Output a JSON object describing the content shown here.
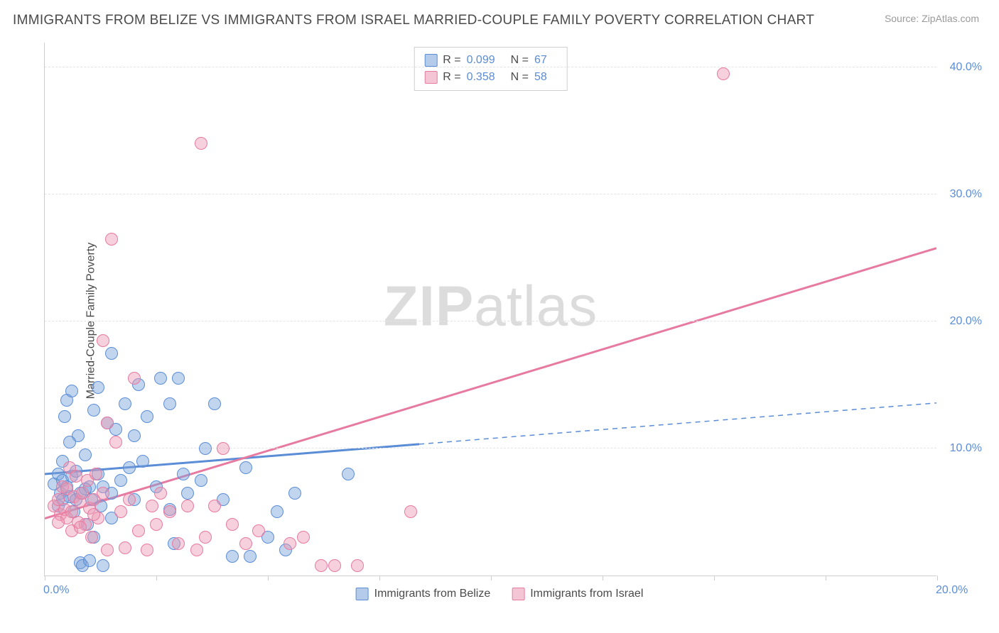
{
  "title": "IMMIGRANTS FROM BELIZE VS IMMIGRANTS FROM ISRAEL MARRIED-COUPLE FAMILY POVERTY CORRELATION CHART",
  "source": "Source: ZipAtlas.com",
  "watermark_a": "ZIP",
  "watermark_b": "atlas",
  "y_axis_title": "Married-Couple Family Poverty",
  "chart": {
    "type": "scatter",
    "background_color": "#ffffff",
    "grid_color": "#e4e4e4",
    "axis_color": "#cfcfcf",
    "label_color": "#5b8dd6",
    "text_color": "#4a4a4a",
    "xlim": [
      0,
      20
    ],
    "ylim": [
      0,
      42
    ],
    "x_ticks": [
      0,
      2.5,
      5,
      7.5,
      10,
      12.5,
      15,
      17.5,
      20
    ],
    "x_tick_labels": {
      "0": "0.0%",
      "20": "20.0%"
    },
    "y_ticks": [
      10,
      20,
      30,
      40
    ],
    "y_tick_labels": {
      "10": "10.0%",
      "20": "20.0%",
      "30": "30.0%",
      "40": "40.0%"
    },
    "marker_size": 18,
    "marker_opacity": 0.45,
    "series": [
      {
        "name": "Immigrants from Belize",
        "color_fill": "#77a2d9",
        "color_stroke": "#5b8dd6",
        "r": "0.099",
        "n": "67",
        "trend": {
          "x1": 0,
          "y1": 8.0,
          "x2": 20,
          "y2": 13.6,
          "solid_to_x": 8.4,
          "width": 3
        },
        "points": [
          [
            0.2,
            7.2
          ],
          [
            0.3,
            8.0
          ],
          [
            0.35,
            6.5
          ],
          [
            0.4,
            7.5
          ],
          [
            0.4,
            9.0
          ],
          [
            0.45,
            12.5
          ],
          [
            0.5,
            7.0
          ],
          [
            0.5,
            13.8
          ],
          [
            0.55,
            6.2
          ],
          [
            0.6,
            7.8
          ],
          [
            0.6,
            14.5
          ],
          [
            0.65,
            5.0
          ],
          [
            0.7,
            8.2
          ],
          [
            0.75,
            11.0
          ],
          [
            0.8,
            6.5
          ],
          [
            0.8,
            1.0
          ],
          [
            0.85,
            0.8
          ],
          [
            0.9,
            9.5
          ],
          [
            0.95,
            4.0
          ],
          [
            1.0,
            1.2
          ],
          [
            1.0,
            7.0
          ],
          [
            1.05,
            6.0
          ],
          [
            1.1,
            13.0
          ],
          [
            1.1,
            3.0
          ],
          [
            1.2,
            14.8
          ],
          [
            1.2,
            8.0
          ],
          [
            1.25,
            5.5
          ],
          [
            1.3,
            0.8
          ],
          [
            1.4,
            12.0
          ],
          [
            1.5,
            6.5
          ],
          [
            1.5,
            17.5
          ],
          [
            1.6,
            11.5
          ],
          [
            1.7,
            7.5
          ],
          [
            1.8,
            13.5
          ],
          [
            1.9,
            8.5
          ],
          [
            2.0,
            6.0
          ],
          [
            2.1,
            15.0
          ],
          [
            2.2,
            9.0
          ],
          [
            2.3,
            12.5
          ],
          [
            2.5,
            7.0
          ],
          [
            2.6,
            15.5
          ],
          [
            2.8,
            13.5
          ],
          [
            2.9,
            2.5
          ],
          [
            3.0,
            15.5
          ],
          [
            3.1,
            8.0
          ],
          [
            3.2,
            6.5
          ],
          [
            3.5,
            7.5
          ],
          [
            3.6,
            10.0
          ],
          [
            3.8,
            13.5
          ],
          [
            4.0,
            6.0
          ],
          [
            4.2,
            1.5
          ],
          [
            4.5,
            8.5
          ],
          [
            4.6,
            1.5
          ],
          [
            5.0,
            3.0
          ],
          [
            5.2,
            5.0
          ],
          [
            5.4,
            2.0
          ],
          [
            5.6,
            6.5
          ],
          [
            6.8,
            8.0
          ],
          [
            0.3,
            5.5
          ],
          [
            0.55,
            10.5
          ],
          [
            0.9,
            6.8
          ],
          [
            1.5,
            4.5
          ],
          [
            2.0,
            11.0
          ],
          [
            2.8,
            5.2
          ],
          [
            0.7,
            6.0
          ],
          [
            1.3,
            7.0
          ],
          [
            0.4,
            6.0
          ]
        ]
      },
      {
        "name": "Immigrants from Israel",
        "color_fill": "#eb96b2",
        "color_stroke": "#e77aa0",
        "r": "0.358",
        "n": "58",
        "trend": {
          "x1": 0,
          "y1": 4.5,
          "x2": 20,
          "y2": 25.8,
          "solid_to_x": 20,
          "width": 3
        },
        "points": [
          [
            0.2,
            5.5
          ],
          [
            0.3,
            6.0
          ],
          [
            0.35,
            4.8
          ],
          [
            0.4,
            7.0
          ],
          [
            0.45,
            5.2
          ],
          [
            0.5,
            4.5
          ],
          [
            0.5,
            6.8
          ],
          [
            0.55,
            8.5
          ],
          [
            0.6,
            5.0
          ],
          [
            0.6,
            3.5
          ],
          [
            0.65,
            6.2
          ],
          [
            0.7,
            7.8
          ],
          [
            0.75,
            4.2
          ],
          [
            0.8,
            5.8
          ],
          [
            0.85,
            6.5
          ],
          [
            0.9,
            4.0
          ],
          [
            0.95,
            7.5
          ],
          [
            1.0,
            5.3
          ],
          [
            1.05,
            3.0
          ],
          [
            1.1,
            6.0
          ],
          [
            1.15,
            8.0
          ],
          [
            1.2,
            4.5
          ],
          [
            1.3,
            18.5
          ],
          [
            1.3,
            6.5
          ],
          [
            1.4,
            12.0
          ],
          [
            1.4,
            2.0
          ],
          [
            1.5,
            26.5
          ],
          [
            1.6,
            10.5
          ],
          [
            1.7,
            5.0
          ],
          [
            1.8,
            2.2
          ],
          [
            1.9,
            6.0
          ],
          [
            2.0,
            15.5
          ],
          [
            2.1,
            3.5
          ],
          [
            2.3,
            2.0
          ],
          [
            2.4,
            5.5
          ],
          [
            2.5,
            4.0
          ],
          [
            2.6,
            6.5
          ],
          [
            2.8,
            5.0
          ],
          [
            3.0,
            2.5
          ],
          [
            3.2,
            5.5
          ],
          [
            3.4,
            2.0
          ],
          [
            3.5,
            34.0
          ],
          [
            3.6,
            3.0
          ],
          [
            3.8,
            5.5
          ],
          [
            4.0,
            10.0
          ],
          [
            4.2,
            4.0
          ],
          [
            4.5,
            2.5
          ],
          [
            4.8,
            3.5
          ],
          [
            5.5,
            2.5
          ],
          [
            5.8,
            3.0
          ],
          [
            6.2,
            0.8
          ],
          [
            6.5,
            0.8
          ],
          [
            7.0,
            0.8
          ],
          [
            8.2,
            5.0
          ],
          [
            15.2,
            39.5
          ],
          [
            0.3,
            4.2
          ],
          [
            0.8,
            3.8
          ],
          [
            1.1,
            4.8
          ]
        ]
      }
    ]
  },
  "legend_top": {
    "r_label": "R =",
    "n_label": "N ="
  },
  "legend_bottom": {
    "s1": "Immigrants from Belize",
    "s2": "Immigrants from Israel"
  }
}
